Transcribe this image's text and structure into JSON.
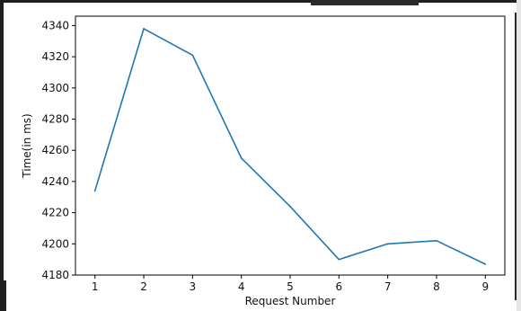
{
  "chart_data": {
    "type": "line",
    "title": "",
    "xlabel": "Request Number",
    "ylabel": "Time(in ms)",
    "x": [
      1,
      2,
      3,
      4,
      5,
      6,
      7,
      8,
      9
    ],
    "series": [
      {
        "values": [
          4234,
          4338,
          4321,
          4255,
          4224,
          4190,
          4200,
          4202,
          4187
        ],
        "color": "#1f77b4"
      }
    ],
    "xlim": [
      0.6,
      9.4
    ],
    "ylim": [
      4180,
      4346
    ],
    "xticks": [
      1,
      2,
      3,
      4,
      5,
      6,
      7,
      8,
      9
    ],
    "yticks": [
      4180,
      4200,
      4220,
      4240,
      4260,
      4280,
      4300,
      4320,
      4340
    ],
    "grid": false,
    "legend": false
  }
}
